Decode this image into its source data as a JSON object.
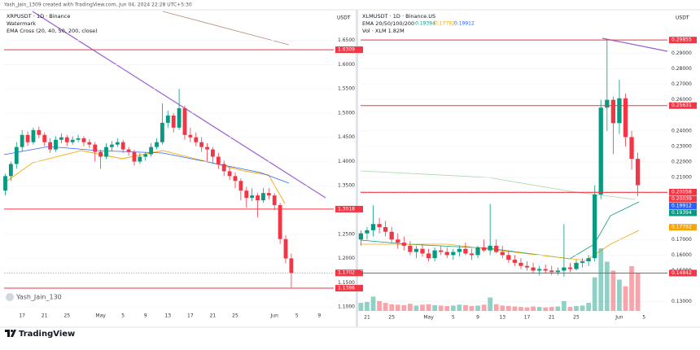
{
  "header": "Yash_Jain_1309 created with TradingView.com, Jun 04, 2024 22:28 UTC+5:30",
  "footer": "TradingView",
  "chart_data": [
    {
      "type": "candlestick",
      "title": "XRPUSDT · 1D · Binance",
      "legend": [
        "Watermark",
        "EMA Cross (20, 40, 50, 200, close)"
      ],
      "watermark": "Yash_Jain_130",
      "currency": "USDT",
      "grid": true,
      "up_color": "#089981",
      "down_color": "#f23645",
      "ylim": [
        1.095,
        1.71
      ],
      "yticks": [
        {
          "value": 1.65,
          "label": "1.6500"
        },
        {
          "value": 1.6,
          "label": "1.6000"
        },
        {
          "value": 1.55,
          "label": "1.5500"
        },
        {
          "value": 1.5,
          "label": "1.5000"
        },
        {
          "value": 1.45,
          "label": "1.4500"
        },
        {
          "value": 1.4,
          "label": "1.4000"
        },
        {
          "value": 1.35,
          "label": "1.3500"
        },
        {
          "value": 1.25,
          "label": "1.2500"
        },
        {
          "value": 1.2,
          "label": "1.2000"
        },
        {
          "value": 1.15,
          "label": "1.1500"
        },
        {
          "value": 1.1,
          "label": "1.1000"
        }
      ],
      "categories": [
        null,
        null,
        null,
        "17",
        null,
        null,
        null,
        "21",
        null,
        null,
        null,
        "25",
        null,
        null,
        null,
        null,
        null,
        "May",
        null,
        null,
        null,
        "5",
        null,
        null,
        null,
        "9",
        null,
        null,
        null,
        "13",
        null,
        null,
        null,
        "17",
        null,
        null,
        null,
        "21",
        null,
        null,
        null,
        "25",
        null,
        null,
        null,
        null,
        null,
        null,
        "Jun",
        null,
        null,
        null,
        "5",
        null,
        null,
        null,
        "9"
      ],
      "candles": [
        [
          1.34,
          1.375,
          1.33,
          1.37
        ],
        [
          1.37,
          1.4,
          1.36,
          1.395
        ],
        [
          1.395,
          1.44,
          1.385,
          1.43
        ],
        [
          1.43,
          1.465,
          1.42,
          1.455
        ],
        [
          1.455,
          1.462,
          1.432,
          1.44
        ],
        [
          1.44,
          1.47,
          1.435,
          1.465
        ],
        [
          1.465,
          1.472,
          1.448,
          1.455
        ],
        [
          1.455,
          1.46,
          1.432,
          1.44
        ],
        [
          1.44,
          1.448,
          1.418,
          1.425
        ],
        [
          1.425,
          1.452,
          1.42,
          1.445
        ],
        [
          1.445,
          1.458,
          1.438,
          1.45
        ],
        [
          1.45,
          1.455,
          1.432,
          1.44
        ],
        [
          1.44,
          1.452,
          1.435,
          1.445
        ],
        [
          1.445,
          1.455,
          1.44,
          1.448
        ],
        [
          1.448,
          1.452,
          1.432,
          1.44
        ],
        [
          1.44,
          1.446,
          1.428,
          1.435
        ],
        [
          1.435,
          1.44,
          1.4,
          1.42
        ],
        [
          1.42,
          1.425,
          1.385,
          1.41
        ],
        [
          1.41,
          1.438,
          1.405,
          1.43
        ],
        [
          1.43,
          1.442,
          1.422,
          1.435
        ],
        [
          1.435,
          1.448,
          1.43,
          1.44
        ],
        [
          1.44,
          1.445,
          1.418,
          1.425
        ],
        [
          1.425,
          1.43,
          1.412,
          1.42
        ],
        [
          1.42,
          1.424,
          1.392,
          1.4
        ],
        [
          1.4,
          1.418,
          1.395,
          1.41
        ],
        [
          1.41,
          1.42,
          1.402,
          1.415
        ],
        [
          1.415,
          1.438,
          1.41,
          1.43
        ],
        [
          1.43,
          1.448,
          1.425,
          1.44
        ],
        [
          1.44,
          1.52,
          1.435,
          1.48
        ],
        [
          1.48,
          1.505,
          1.47,
          1.495
        ],
        [
          1.495,
          1.5,
          1.46,
          1.47
        ],
        [
          1.47,
          1.55,
          1.465,
          1.51
        ],
        [
          1.51,
          1.515,
          1.445,
          1.455
        ],
        [
          1.455,
          1.47,
          1.44,
          1.45
        ],
        [
          1.45,
          1.46,
          1.432,
          1.44
        ],
        [
          1.44,
          1.45,
          1.42,
          1.43
        ],
        [
          1.43,
          1.438,
          1.4,
          1.425
        ],
        [
          1.425,
          1.43,
          1.398,
          1.41
        ],
        [
          1.41,
          1.418,
          1.385,
          1.395
        ],
        [
          1.395,
          1.402,
          1.37,
          1.38
        ],
        [
          1.38,
          1.39,
          1.362,
          1.37
        ],
        [
          1.37,
          1.378,
          1.345,
          1.36
        ],
        [
          1.36,
          1.365,
          1.32,
          1.34
        ],
        [
          1.34,
          1.348,
          1.305,
          1.325
        ],
        [
          1.325,
          1.345,
          1.318,
          1.33
        ],
        [
          1.33,
          1.335,
          1.285,
          1.32
        ],
        [
          1.32,
          1.345,
          1.315,
          1.335
        ],
        [
          1.335,
          1.345,
          1.322,
          1.33
        ],
        [
          1.33,
          1.335,
          1.3,
          1.31
        ],
        [
          1.31,
          1.315,
          1.23,
          1.24
        ],
        [
          1.24,
          1.248,
          1.19,
          1.2
        ],
        [
          1.2,
          1.21,
          1.14,
          1.17
        ],
        null,
        null,
        null,
        null,
        null
      ],
      "levels": [
        {
          "value": 1.6309,
          "color": "#f23645",
          "line": "solid"
        },
        {
          "value": 1.3018,
          "color": "#f23645",
          "line": "solid"
        },
        {
          "value": 1.1702,
          "color": "#f23645",
          "line": "dotted"
        },
        {
          "value": 1.1386,
          "color": "#f23645",
          "line": "solid"
        }
      ]
    },
    {
      "type": "candlestick",
      "title": "XLMUSDT · 1D · Binance.US",
      "legend": [
        "EMA 20/50/100/200",
        "Vol · XLM 1.82M"
      ],
      "ema": [
        {
          "value": 0.19394,
          "color": "#089981"
        },
        {
          "value": 0.17792,
          "color": "#f7a600"
        },
        {
          "value": 0.19912,
          "color": "#2962ff"
        }
      ],
      "currency": "USDT",
      "grid": true,
      "up_color": "#089981",
      "down_color": "#f23645",
      "ylim": [
        0.124,
        0.317
      ],
      "yticks": [
        {
          "value": 0.29,
          "label": "0.29000"
        },
        {
          "value": 0.28,
          "label": "0.28000"
        },
        {
          "value": 0.27,
          "label": "0.27000"
        },
        {
          "value": 0.26,
          "label": "0.26000"
        },
        {
          "value": 0.24,
          "label": "0.24000"
        },
        {
          "value": 0.23,
          "label": "0.23000"
        },
        {
          "value": 0.22,
          "label": "0.22000"
        },
        {
          "value": 0.21,
          "label": "0.21000"
        },
        {
          "value": 0.17,
          "label": "0.17000"
        },
        {
          "value": 0.16,
          "label": "0.16000"
        },
        {
          "value": 0.15,
          "label": "0.15000"
        },
        {
          "value": 0.13,
          "label": "0.13000"
        }
      ],
      "categories": [
        null,
        "21",
        null,
        null,
        null,
        "25",
        null,
        null,
        null,
        null,
        null,
        "May",
        null,
        null,
        null,
        "5",
        null,
        null,
        null,
        "9",
        null,
        null,
        null,
        "13",
        null,
        null,
        null,
        "17",
        null,
        null,
        null,
        "21",
        null,
        null,
        null,
        "25",
        null,
        null,
        null,
        null,
        null,
        null,
        "Jun",
        null,
        null,
        null,
        "5",
        null
      ],
      "candles": [
        [
          0.17,
          0.176,
          0.166,
          0.174
        ],
        [
          0.174,
          0.178,
          0.17,
          0.176
        ],
        [
          0.176,
          0.192,
          0.172,
          0.18
        ],
        [
          0.18,
          0.184,
          0.174,
          0.178
        ],
        [
          0.178,
          0.182,
          0.172,
          0.175
        ],
        [
          0.175,
          0.178,
          0.168,
          0.17
        ],
        [
          0.17,
          0.174,
          0.164,
          0.168
        ],
        [
          0.168,
          0.172,
          0.163,
          0.166
        ],
        [
          0.166,
          0.169,
          0.16,
          0.162
        ],
        [
          0.162,
          0.166,
          0.158,
          0.164
        ],
        [
          0.164,
          0.167,
          0.159,
          0.161
        ],
        [
          0.161,
          0.164,
          0.156,
          0.158
        ],
        [
          0.158,
          0.165,
          0.156,
          0.163
        ],
        [
          0.163,
          0.166,
          0.16,
          0.162
        ],
        [
          0.162,
          0.165,
          0.158,
          0.16
        ],
        [
          0.16,
          0.164,
          0.157,
          0.162
        ],
        [
          0.162,
          0.166,
          0.159,
          0.164
        ],
        [
          0.164,
          0.168,
          0.16,
          0.161
        ],
        [
          0.161,
          0.164,
          0.157,
          0.16
        ],
        [
          0.16,
          0.166,
          0.158,
          0.165
        ],
        [
          0.165,
          0.17,
          0.162,
          0.163
        ],
        [
          0.163,
          0.193,
          0.16,
          0.166
        ],
        [
          0.166,
          0.17,
          0.161,
          0.162
        ],
        [
          0.162,
          0.166,
          0.158,
          0.16
        ],
        [
          0.16,
          0.163,
          0.155,
          0.157
        ],
        [
          0.157,
          0.16,
          0.153,
          0.155
        ],
        [
          0.155,
          0.158,
          0.151,
          0.153
        ],
        [
          0.153,
          0.156,
          0.15,
          0.152
        ],
        [
          0.152,
          0.155,
          0.148,
          0.15
        ],
        [
          0.15,
          0.153,
          0.147,
          0.151
        ],
        [
          0.151,
          0.154,
          0.148,
          0.15
        ],
        [
          0.15,
          0.153,
          0.147,
          0.149
        ],
        [
          0.149,
          0.152,
          0.147,
          0.15
        ],
        [
          0.15,
          0.18,
          0.146,
          0.152
        ],
        [
          0.152,
          0.155,
          0.149,
          0.151
        ],
        [
          0.151,
          0.157,
          0.15,
          0.155
        ],
        [
          0.155,
          0.158,
          0.152,
          0.156
        ],
        [
          0.156,
          0.16,
          0.153,
          0.158
        ],
        [
          0.158,
          0.205,
          0.156,
          0.199
        ],
        [
          0.199,
          0.26,
          0.196,
          0.255
        ],
        [
          0.255,
          0.299,
          0.24,
          0.26
        ],
        [
          0.26,
          0.262,
          0.225,
          0.245
        ],
        [
          0.245,
          0.273,
          0.238,
          0.261
        ],
        [
          0.261,
          0.264,
          0.23,
          0.236
        ],
        [
          0.236,
          0.24,
          0.215,
          0.222
        ],
        [
          0.222,
          0.226,
          0.198,
          0.205
        ],
        null,
        null
      ],
      "volume": [
        18,
        20,
        32,
        22,
        18,
        15,
        14,
        13,
        16,
        12,
        14,
        15,
        13,
        12,
        11,
        12,
        14,
        13,
        11,
        12,
        14,
        30,
        15,
        12,
        11,
        10,
        9,
        8,
        10,
        9,
        8,
        9,
        10,
        22,
        9,
        11,
        12,
        18,
        75,
        140,
        110,
        90,
        70,
        55,
        100,
        85,
        null,
        null
      ],
      "vlim": [
        0,
        200
      ],
      "levels": [
        {
          "value": 0.29855,
          "color": "#f23645",
          "line": "solid"
        },
        {
          "value": 0.25631,
          "color": "#f23645",
          "line": "solid"
        },
        {
          "value": 0.20058,
          "color": "#f23645",
          "line": "dotted"
        },
        {
          "value": 0.20039,
          "color": "#f23645",
          "line": "solid"
        },
        {
          "value": 0.19912,
          "color": "#2962ff",
          "line": "none"
        },
        {
          "value": 0.19394,
          "color": "#089981",
          "line": "none"
        },
        {
          "value": 0.17792,
          "color": "#f7a600",
          "line": "none"
        },
        {
          "value": 0.14842,
          "color": "#f23645",
          "line": "solid"
        }
      ]
    }
  ]
}
